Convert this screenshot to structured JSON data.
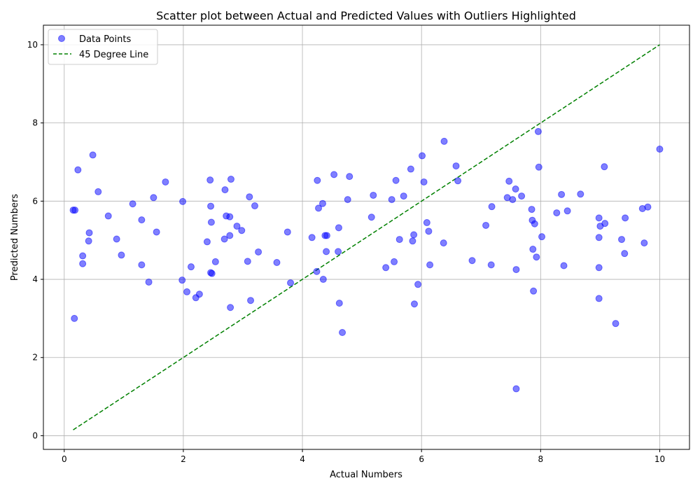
{
  "chart_data": {
    "type": "scatter",
    "title": "Scatter plot between Actual and Predicted Values with Outliers Highlighted",
    "xlabel": "Actual Numbers",
    "ylabel": "Predicted Numbers",
    "xlim": [
      -0.35,
      10.5
    ],
    "ylim": [
      -0.35,
      10.5
    ],
    "xticks": [
      0,
      2,
      4,
      6,
      8,
      10
    ],
    "yticks": [
      0,
      2,
      4,
      6,
      8,
      10
    ],
    "grid": true,
    "legend_position": "top-left",
    "series": [
      {
        "name": "Data Points",
        "kind": "scatter",
        "color": "#0000ff",
        "points": [
          [
            0.15,
            5.77
          ],
          [
            0.18,
            5.77
          ],
          [
            0.17,
            3.0
          ],
          [
            0.23,
            6.8
          ],
          [
            0.31,
            4.6
          ],
          [
            0.31,
            4.4
          ],
          [
            0.41,
            4.98
          ],
          [
            0.42,
            5.19
          ],
          [
            0.48,
            7.18
          ],
          [
            0.57,
            6.24
          ],
          [
            0.74,
            5.62
          ],
          [
            0.88,
            5.03
          ],
          [
            0.96,
            4.62
          ],
          [
            1.15,
            5.93
          ],
          [
            1.3,
            5.52
          ],
          [
            1.3,
            4.37
          ],
          [
            1.42,
            3.93
          ],
          [
            1.5,
            6.09
          ],
          [
            1.55,
            5.21
          ],
          [
            1.7,
            6.49
          ],
          [
            1.98,
            3.98
          ],
          [
            1.99,
            5.99
          ],
          [
            2.06,
            3.68
          ],
          [
            2.13,
            4.32
          ],
          [
            2.21,
            3.53
          ],
          [
            2.27,
            3.62
          ],
          [
            2.4,
            4.96
          ],
          [
            2.45,
            6.54
          ],
          [
            2.46,
            5.87
          ],
          [
            2.46,
            4.17
          ],
          [
            2.47,
            5.46
          ],
          [
            2.48,
            4.15
          ],
          [
            2.54,
            4.45
          ],
          [
            2.69,
            5.03
          ],
          [
            2.7,
            6.29
          ],
          [
            2.72,
            5.62
          ],
          [
            2.78,
            5.6
          ],
          [
            2.78,
            5.12
          ],
          [
            2.79,
            3.28
          ],
          [
            2.8,
            6.56
          ],
          [
            2.9,
            5.36
          ],
          [
            2.98,
            5.25
          ],
          [
            3.08,
            4.46
          ],
          [
            3.11,
            6.11
          ],
          [
            3.13,
            3.46
          ],
          [
            3.2,
            5.88
          ],
          [
            3.26,
            4.7
          ],
          [
            3.57,
            4.43
          ],
          [
            3.75,
            5.21
          ],
          [
            3.8,
            3.91
          ],
          [
            4.16,
            5.07
          ],
          [
            4.24,
            4.2
          ],
          [
            4.25,
            6.53
          ],
          [
            4.27,
            5.82
          ],
          [
            4.34,
            5.94
          ],
          [
            4.35,
            4.0
          ],
          [
            4.38,
            5.12
          ],
          [
            4.4,
            4.71
          ],
          [
            4.41,
            5.12
          ],
          [
            4.53,
            6.68
          ],
          [
            4.6,
            4.71
          ],
          [
            4.61,
            5.32
          ],
          [
            4.62,
            3.39
          ],
          [
            4.67,
            2.64
          ],
          [
            4.76,
            6.04
          ],
          [
            4.79,
            6.63
          ],
          [
            5.16,
            5.59
          ],
          [
            5.19,
            6.15
          ],
          [
            5.4,
            4.3
          ],
          [
            5.5,
            6.04
          ],
          [
            5.54,
            4.45
          ],
          [
            5.57,
            6.53
          ],
          [
            5.63,
            5.02
          ],
          [
            5.7,
            6.13
          ],
          [
            5.82,
            6.82
          ],
          [
            5.85,
            4.98
          ],
          [
            5.87,
            5.14
          ],
          [
            5.88,
            3.37
          ],
          [
            5.94,
            3.87
          ],
          [
            6.01,
            7.16
          ],
          [
            6.04,
            6.49
          ],
          [
            6.09,
            5.45
          ],
          [
            6.12,
            5.23
          ],
          [
            6.14,
            4.37
          ],
          [
            6.37,
            4.93
          ],
          [
            6.38,
            7.53
          ],
          [
            6.58,
            6.9
          ],
          [
            6.61,
            6.52
          ],
          [
            6.85,
            4.48
          ],
          [
            7.08,
            5.38
          ],
          [
            7.17,
            4.37
          ],
          [
            7.18,
            5.86
          ],
          [
            7.44,
            6.09
          ],
          [
            7.47,
            6.51
          ],
          [
            7.53,
            6.04
          ],
          [
            7.58,
            6.31
          ],
          [
            7.59,
            4.25
          ],
          [
            7.59,
            1.2
          ],
          [
            7.68,
            6.13
          ],
          [
            7.85,
            5.79
          ],
          [
            7.86,
            5.51
          ],
          [
            7.87,
            4.77
          ],
          [
            7.88,
            3.7
          ],
          [
            7.9,
            5.42
          ],
          [
            7.93,
            4.57
          ],
          [
            7.96,
            7.78
          ],
          [
            7.97,
            6.87
          ],
          [
            8.02,
            5.09
          ],
          [
            8.27,
            5.7
          ],
          [
            8.35,
            6.17
          ],
          [
            8.39,
            4.35
          ],
          [
            8.45,
            5.75
          ],
          [
            8.67,
            6.18
          ],
          [
            8.98,
            5.57
          ],
          [
            8.98,
            5.07
          ],
          [
            8.98,
            4.3
          ],
          [
            8.98,
            3.51
          ],
          [
            9.0,
            5.36
          ],
          [
            9.07,
            6.88
          ],
          [
            9.08,
            5.43
          ],
          [
            9.26,
            2.87
          ],
          [
            9.36,
            5.02
          ],
          [
            9.41,
            4.66
          ],
          [
            9.42,
            5.57
          ],
          [
            9.71,
            5.81
          ],
          [
            9.74,
            4.93
          ],
          [
            9.8,
            5.85
          ],
          [
            10.0,
            7.33
          ]
        ]
      },
      {
        "name": "45 Degree Line",
        "kind": "line",
        "style": "dashed",
        "color": "#008000",
        "x": [
          0.15,
          10.0
        ],
        "y": [
          0.15,
          10.0
        ]
      }
    ]
  }
}
